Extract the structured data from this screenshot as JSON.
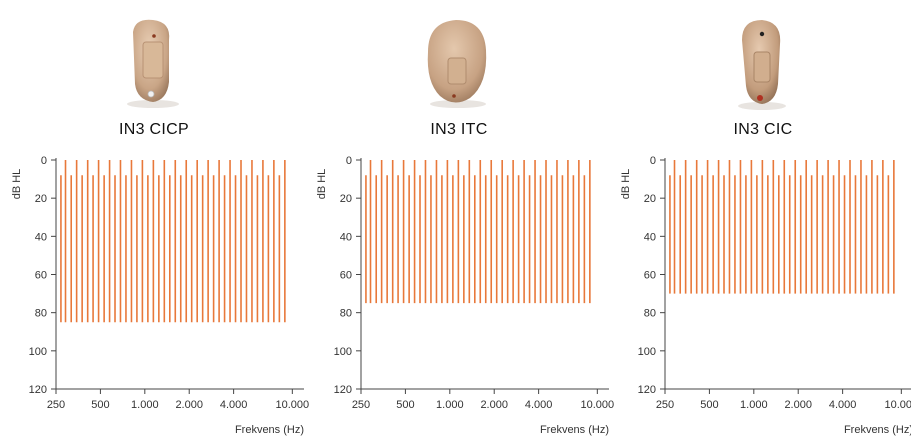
{
  "colors": {
    "bar": "#e8783a",
    "axis": "#444444"
  },
  "devices": [
    {
      "name": "IN3 CICP",
      "icon": "in-the-canal-hearing-aid-cicp"
    },
    {
      "name": "IN3 ITC",
      "icon": "in-the-ear-hearing-aid-itc"
    },
    {
      "name": "IN3 CIC",
      "icon": "completely-in-canal-hearing-aid-cic"
    }
  ],
  "chart_data": [
    {
      "type": "bar",
      "title": "IN3 CICP",
      "xlabel": "Frekvens (Hz)",
      "ylabel": "dB HL",
      "x_scale": "log",
      "xlim": [
        250,
        12000
      ],
      "ylim": [
        0,
        120
      ],
      "y_inverted": true,
      "y_ticks": [
        "0",
        "20",
        "40",
        "60",
        "80",
        "100",
        "120"
      ],
      "x_ticks": [
        "250",
        "500",
        "1.000",
        "2.000",
        "4.000",
        "10.000"
      ],
      "grid": false,
      "series": [
        {
          "values_top": [
            8,
            0,
            8,
            0,
            8,
            0,
            8,
            0,
            8,
            0,
            8,
            0,
            8,
            0,
            8,
            0,
            8,
            0,
            8,
            0,
            8,
            0,
            8,
            0,
            8,
            0,
            8,
            0,
            8,
            0,
            8,
            0,
            8,
            0,
            8,
            0,
            8,
            0,
            8,
            0,
            8,
            0
          ],
          "value_bottom": 85
        }
      ],
      "bar_frequencies": [
        270,
        290,
        317,
        345,
        376,
        410,
        446,
        486,
        530,
        577,
        628,
        684,
        745,
        812,
        884,
        963,
        1049,
        1143,
        1245,
        1356,
        1477,
        1609,
        1752,
        1909,
        2079,
        2265,
        2467,
        2687,
        2927,
        3189,
        3473,
        3783,
        4121,
        4489,
        4889,
        5326,
        5801,
        6319,
        6883,
        7497,
        8170,
        8900
      ]
    },
    {
      "type": "bar",
      "title": "IN3 ITC",
      "xlabel": "Frekvens (Hz)",
      "ylabel": "dB HL",
      "x_scale": "log",
      "xlim": [
        250,
        12000
      ],
      "ylim": [
        0,
        120
      ],
      "y_inverted": true,
      "y_ticks": [
        "0",
        "20",
        "40",
        "60",
        "80",
        "100",
        "120"
      ],
      "x_ticks": [
        "250",
        "500",
        "1.000",
        "2.000",
        "4.000",
        "10.000"
      ],
      "grid": false,
      "series": [
        {
          "values_top": [
            8,
            0,
            8,
            0,
            8,
            0,
            8,
            0,
            8,
            0,
            8,
            0,
            8,
            0,
            8,
            0,
            8,
            0,
            8,
            0,
            8,
            0,
            8,
            0,
            8,
            0,
            8,
            0,
            8,
            0,
            8,
            0,
            8,
            0,
            8,
            0,
            8,
            0,
            8,
            0,
            8,
            0
          ],
          "value_bottom": 75
        }
      ],
      "bar_frequencies": [
        270,
        290,
        317,
        345,
        376,
        410,
        446,
        486,
        530,
        577,
        628,
        684,
        745,
        812,
        884,
        963,
        1049,
        1143,
        1245,
        1356,
        1477,
        1609,
        1752,
        1909,
        2079,
        2265,
        2467,
        2687,
        2927,
        3189,
        3473,
        3783,
        4121,
        4489,
        4889,
        5326,
        5801,
        6319,
        6883,
        7497,
        8170,
        8900
      ]
    },
    {
      "type": "bar",
      "title": "IN3 CIC",
      "xlabel": "Frekvens (Hz)",
      "ylabel": "dB HL",
      "x_scale": "log",
      "xlim": [
        250,
        12000
      ],
      "ylim": [
        0,
        120
      ],
      "y_inverted": true,
      "y_ticks": [
        "0",
        "20",
        "40",
        "60",
        "80",
        "100",
        "120"
      ],
      "x_ticks": [
        "250",
        "500",
        "1.000",
        "2.000",
        "4.000",
        "10.000"
      ],
      "grid": false,
      "series": [
        {
          "values_top": [
            8,
            0,
            8,
            0,
            8,
            0,
            8,
            0,
            8,
            0,
            8,
            0,
            8,
            0,
            8,
            0,
            8,
            0,
            8,
            0,
            8,
            0,
            8,
            0,
            8,
            0,
            8,
            0,
            8,
            0,
            8,
            0,
            8,
            0,
            8,
            0,
            8,
            0,
            8,
            0,
            8,
            0
          ],
          "value_bottom": 70
        }
      ],
      "bar_frequencies": [
        270,
        290,
        317,
        345,
        376,
        410,
        446,
        486,
        530,
        577,
        628,
        684,
        745,
        812,
        884,
        963,
        1049,
        1143,
        1245,
        1356,
        1477,
        1609,
        1752,
        1909,
        2079,
        2265,
        2467,
        2687,
        2927,
        3189,
        3473,
        3783,
        4121,
        4489,
        4889,
        5326,
        5801,
        6319,
        6883,
        7497,
        8170,
        8900
      ]
    }
  ]
}
